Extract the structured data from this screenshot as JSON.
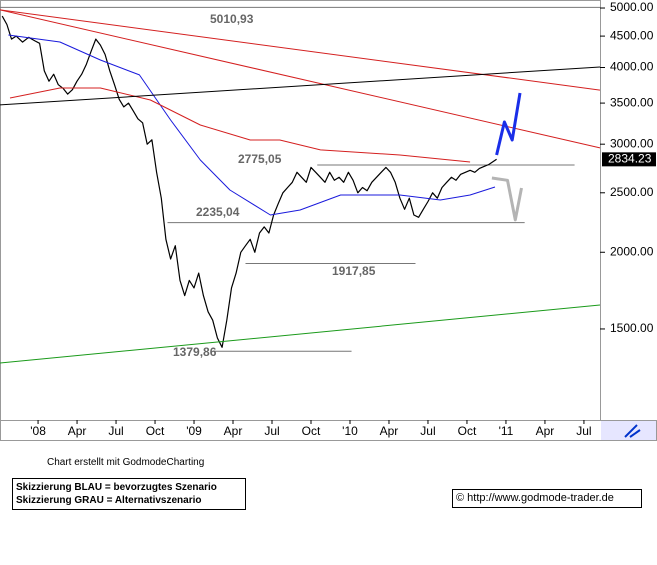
{
  "chart_data": {
    "type": "line",
    "log_scale": true,
    "xlim": [
      2007.756,
      2011.603
    ],
    "ylim": [
      1066,
      5095
    ],
    "yticks": [
      {
        "value": 1500,
        "label": "1500.00"
      },
      {
        "value": 2000,
        "label": "2000.00"
      },
      {
        "value": 2500,
        "label": "2500.00"
      },
      {
        "value": 3000,
        "label": "3000.00"
      },
      {
        "value": 3500,
        "label": "3500.00"
      },
      {
        "value": 4000,
        "label": "4000.00"
      },
      {
        "value": 4500,
        "label": "4500.00"
      },
      {
        "value": 5000,
        "label": "5000.00"
      }
    ],
    "xticks": [
      {
        "value": 2008,
        "label": "'08"
      },
      {
        "value": 2008.25,
        "label": "Apr"
      },
      {
        "value": 2008.5,
        "label": "Jul"
      },
      {
        "value": 2008.75,
        "label": "Oct"
      },
      {
        "value": 2009,
        "label": "'09"
      },
      {
        "value": 2009.25,
        "label": "Apr"
      },
      {
        "value": 2009.5,
        "label": "Jul"
      },
      {
        "value": 2009.75,
        "label": "Oct"
      },
      {
        "value": 2010,
        "label": "'10"
      },
      {
        "value": 2010.25,
        "label": "Apr"
      },
      {
        "value": 2010.5,
        "label": "Jul"
      },
      {
        "value": 2010.75,
        "label": "Oct"
      },
      {
        "value": 2011,
        "label": "'11"
      },
      {
        "value": 2011.25,
        "label": "Apr"
      },
      {
        "value": 2011.5,
        "label": "Jul"
      }
    ],
    "series": [
      {
        "color": "#000000",
        "x": [
          2007.77,
          2007.8,
          2007.83,
          2007.86,
          2007.9,
          2007.94,
          2007.98,
          2008.01,
          2008.04,
          2008.07,
          2008.1,
          2008.13,
          2008.16,
          2008.19,
          2008.22,
          2008.25,
          2008.28,
          2008.31,
          2008.34,
          2008.37,
          2008.4,
          2008.43,
          2008.46,
          2008.49,
          2008.52,
          2008.55,
          2008.58,
          2008.61,
          2008.64,
          2008.67,
          2008.7,
          2008.73,
          2008.76,
          2008.79,
          2008.82,
          2008.85,
          2008.88,
          2008.91,
          2008.94,
          2008.97,
          2009.0,
          2009.03,
          2009.06,
          2009.09,
          2009.12,
          2009.15,
          2009.18,
          2009.21,
          2009.24,
          2009.27,
          2009.3,
          2009.33,
          2009.36,
          2009.39,
          2009.42,
          2009.45,
          2009.48,
          2009.51,
          2009.54,
          2009.57,
          2009.6,
          2009.63,
          2009.66,
          2009.69,
          2009.72,
          2009.75,
          2009.78,
          2009.81,
          2009.84,
          2009.87,
          2009.9,
          2009.93,
          2009.96,
          2009.99,
          2010.02,
          2010.05,
          2010.08,
          2010.11,
          2010.14,
          2010.17,
          2010.2,
          2010.23,
          2010.26,
          2010.29,
          2010.32,
          2010.35,
          2010.38,
          2010.41,
          2010.44,
          2010.47,
          2010.5,
          2010.53,
          2010.56,
          2010.59,
          2010.62,
          2010.65,
          2010.68,
          2010.71,
          2010.74,
          2010.77,
          2010.8,
          2010.83,
          2010.86,
          2010.89,
          2010.94
        ],
        "values": [
          4850,
          4700,
          4450,
          4500,
          4400,
          4480,
          4420,
          4380,
          3950,
          3800,
          3900,
          3750,
          3700,
          3620,
          3680,
          3800,
          3900,
          4050,
          4250,
          4450,
          4350,
          4200,
          3950,
          3750,
          3550,
          3450,
          3500,
          3400,
          3300,
          3250,
          3000,
          3050,
          2700,
          2450,
          2100,
          1950,
          2050,
          1800,
          1700,
          1800,
          1750,
          1850,
          1700,
          1600,
          1550,
          1450,
          1400,
          1550,
          1750,
          1850,
          2000,
          2050,
          2100,
          2000,
          2150,
          2200,
          2150,
          2300,
          2400,
          2500,
          2550,
          2600,
          2700,
          2650,
          2600,
          2750,
          2700,
          2650,
          2600,
          2700,
          2620,
          2650,
          2600,
          2700,
          2620,
          2500,
          2550,
          2520,
          2600,
          2650,
          2700,
          2750,
          2700,
          2600,
          2450,
          2350,
          2450,
          2300,
          2280,
          2350,
          2420,
          2500,
          2450,
          2550,
          2600,
          2650,
          2620,
          2680,
          2700,
          2720,
          2700,
          2740,
          2760,
          2780,
          2834.23
        ]
      },
      {
        "color": "#1a1adc",
        "x": [
          2007.81,
          2008.14,
          2008.4,
          2008.65,
          2008.85,
          2009.04,
          2009.23,
          2009.49,
          2009.68,
          2009.94,
          2010.32,
          2010.58,
          2010.77,
          2010.93
        ],
        "values": [
          4519,
          4401,
          4114,
          3890,
          3285,
          2827,
          2526,
          2300,
          2344,
          2479,
          2479,
          2433,
          2479,
          2555
        ]
      },
      {
        "color": "#d42020",
        "x": [
          2007.82,
          2008.14,
          2008.4,
          2008.72,
          2009.04,
          2009.36,
          2009.55,
          2009.81,
          2010.32,
          2010.77
        ],
        "values": [
          3567,
          3704,
          3704,
          3541,
          3224,
          3048,
          3048,
          2936,
          2881,
          2806
        ]
      },
      {
        "color": "#d42020",
        "x": [
          2007.756,
          2011.603
        ],
        "values": [
          4965,
          3675
        ]
      },
      {
        "color": "#d42020",
        "x": [
          2007.756,
          2011.603
        ],
        "values": [
          4965,
          2958
        ]
      },
      {
        "color": "#000000",
        "x": [
          2007.756,
          2011.603
        ],
        "values": [
          3476,
          4008
        ]
      },
      {
        "color": "#1a9a1a",
        "x": [
          2007.756,
          2011.603
        ],
        "values": [
          1320,
          1641
        ]
      },
      {
        "color": "#1a2ee8",
        "x": [
          2010.94,
          2010.99,
          2011.04,
          2011.09
        ],
        "values": [
          2881,
          3260,
          3048,
          3635
        ]
      },
      {
        "color": "#b4b4b4",
        "x": [
          2010.91,
          2011.01,
          2011.06,
          2011.1
        ],
        "values": [
          2643,
          2620,
          2258,
          2545
        ]
      }
    ],
    "levels": {
      "values": [
        5010.93,
        2775.05,
        2235.04,
        1917.85,
        1379.86
      ],
      "value_labels": [
        "5010,93",
        "2775,05",
        "2235,04",
        "1917,85",
        "1379,86"
      ],
      "spans": [
        [
          2007.756,
          2011.603
        ],
        [
          2009.79,
          2011.44
        ],
        [
          2008.83,
          2011.12
        ],
        [
          2009.33,
          2010.42
        ],
        [
          2009.13,
          2010.01
        ]
      ]
    },
    "last_price": 2834.23
  },
  "footer": {
    "credit": "Chart erstellt mit GodmodeCharting",
    "notes": [
      "Skizzierung BLAU = bevorzugtes Szenario",
      "Skizzierung GRAU = Alternativszenario"
    ],
    "url": "© http://www.godmode-trader.de"
  }
}
